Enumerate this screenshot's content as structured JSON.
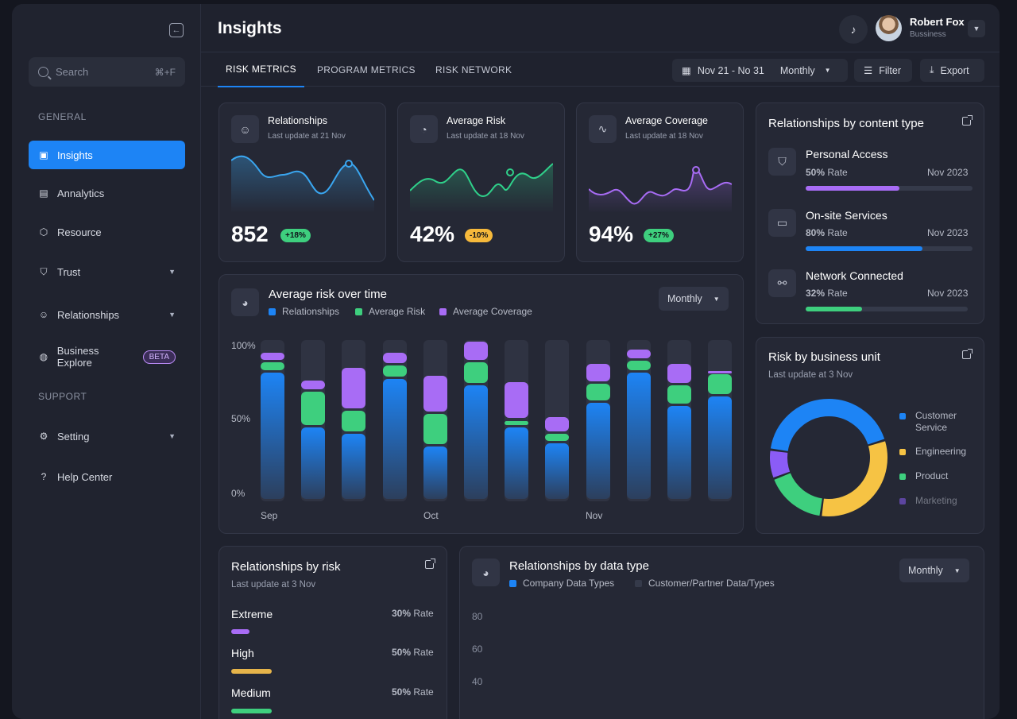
{
  "sidebar": {
    "search_placeholder": "Search",
    "search_shortcut": "⌘+F",
    "general_label": "GENERAL",
    "support_label": "SUPPORT",
    "items": [
      {
        "label": "Insights"
      },
      {
        "label": "Annalytics"
      },
      {
        "label": "Resource"
      },
      {
        "label": "Trust"
      },
      {
        "label": "Relationships"
      },
      {
        "label": "Business Explore",
        "badge": "BETA"
      },
      {
        "label": "Setting"
      },
      {
        "label": "Help Center"
      }
    ]
  },
  "header": {
    "title": "Insights",
    "user_name": "Robert Fox",
    "user_role": "Bussiness"
  },
  "tabs": [
    "RISK METRICS",
    "PROGRAM METRICS",
    "RISK NETWORK"
  ],
  "toolbar": {
    "date_range": "Nov 21 - No 31",
    "period": "Monthly",
    "filter": "Filter",
    "export": "Export"
  },
  "stats": [
    {
      "title": "Relationships",
      "sub": "Last update at 21 Nov",
      "value": "852",
      "badge": "+18%",
      "badge_color": "#3ecf7e",
      "line_color": "#3aa6f0"
    },
    {
      "title": "Average Risk",
      "sub": "Last update at 18 Nov",
      "value": "42%",
      "badge": "-10%",
      "badge_color": "#f6b93b",
      "line_color": "#2fd08a"
    },
    {
      "title": "Average Coverage",
      "sub": "Last update at 18 Nov",
      "value": "94%",
      "badge": "+27%",
      "badge_color": "#3ecf7e",
      "line_color": "#a86cf5"
    }
  ],
  "risk_chart": {
    "title": "Average risk over time",
    "period": "Monthly",
    "legend": [
      "Relationships",
      "Average Risk",
      "Average Coverage"
    ],
    "colors": [
      "#1d84f5",
      "#3ecf7e",
      "#a86cf5"
    ],
    "y_labels": [
      "100%",
      "50%",
      "0%"
    ],
    "x_labels": [
      "Sep",
      "Oct",
      "Nov"
    ]
  },
  "chart_data": {
    "type": "bar",
    "title": "Average risk over time",
    "ylim": [
      0,
      100
    ],
    "series": [
      {
        "name": "Relationships",
        "values": [
          80,
          46,
          42,
          76,
          34,
          72,
          46,
          36,
          61,
          80,
          59,
          65
        ]
      },
      {
        "name": "Average Risk",
        "values": [
          6,
          22,
          14,
          8,
          20,
          14,
          4,
          6,
          12,
          7,
          13,
          14
        ]
      },
      {
        "name": "Average Coverage",
        "values": [
          6,
          7,
          27,
          8,
          24,
          13,
          24,
          10,
          12,
          7,
          13,
          2
        ]
      }
    ]
  },
  "content_type": {
    "title": "Relationships by content type",
    "items": [
      {
        "name": "Personal Access",
        "rate_value": "50%",
        "rate_label": "Rate",
        "date": "Nov 2023",
        "pct": 56,
        "color": "#a86cf5"
      },
      {
        "name": "On-site Services",
        "rate_value": "80%",
        "rate_label": "Rate",
        "date": "Nov 2023",
        "pct": 70,
        "color": "#1d84f5"
      },
      {
        "name": "Network Connected",
        "rate_value": "32%",
        "rate_label": "Rate",
        "date": "Nov 2023",
        "pct": 35,
        "color": "#3ecf7e"
      }
    ]
  },
  "business_unit": {
    "title": "Risk by business unit",
    "sub": "Last update at 3 Nov",
    "legend": [
      "Customer Service",
      "Engineering",
      "Product",
      "Marketing"
    ],
    "colors": [
      "#1d84f5",
      "#f6c344",
      "#3ecf7e",
      "#8b5cf6"
    ],
    "values": [
      43,
      32,
      17,
      8
    ]
  },
  "by_risk": {
    "title": "Relationships by risk",
    "sub": "Last update at 3 Nov",
    "items": [
      {
        "name": "Extreme",
        "rate_value": "30%",
        "rate_label": "Rate",
        "pct": 9,
        "color": "#a86cf5"
      },
      {
        "name": "High",
        "rate_value": "50%",
        "rate_label": "Rate",
        "pct": 20,
        "color": "#e6b44a"
      },
      {
        "name": "Medium",
        "rate_value": "50%",
        "rate_label": "Rate",
        "pct": 20,
        "color": "#3ecf7e"
      }
    ]
  },
  "data_type": {
    "title": "Relationships by data type",
    "period": "Monthly",
    "legend": [
      "Company Data Types",
      "Customer/Partner Data/Types"
    ],
    "colors": [
      "#1d84f5",
      "#353a4a"
    ],
    "y_labels": [
      "80",
      "60",
      "40"
    ]
  }
}
